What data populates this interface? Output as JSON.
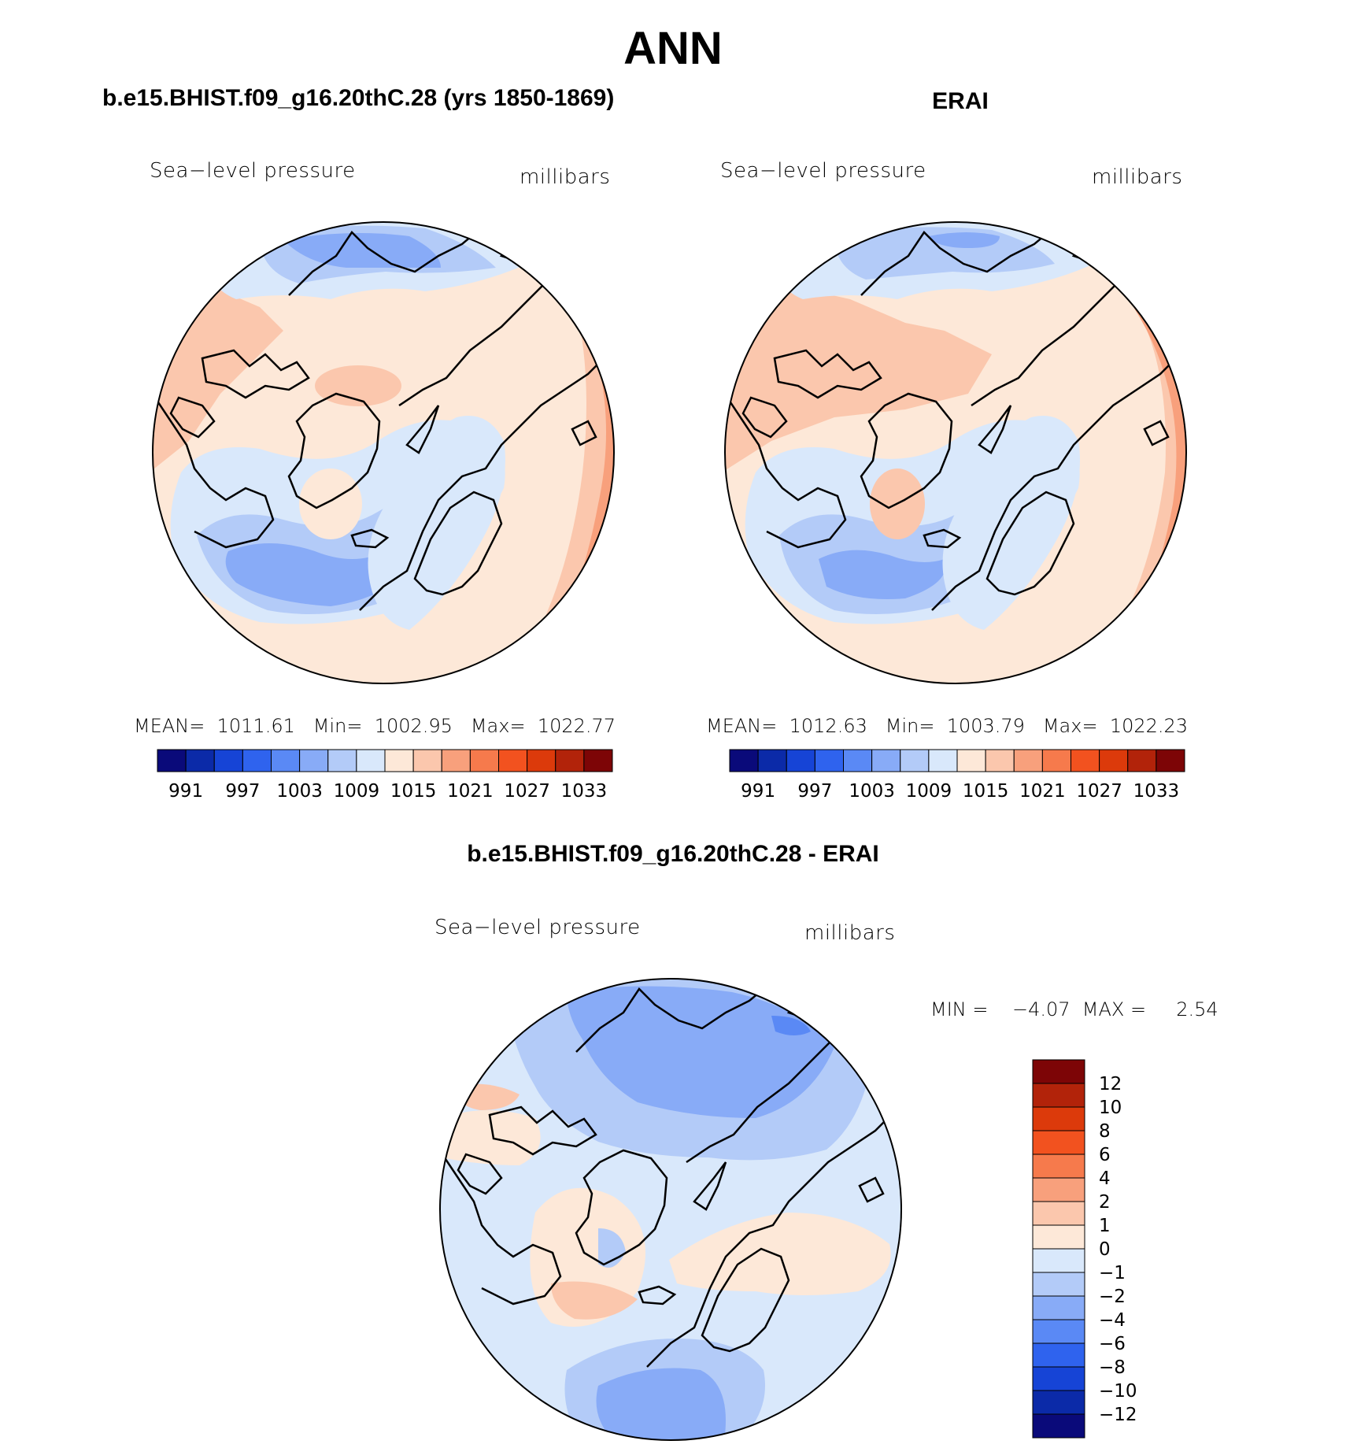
{
  "title": "ANN",
  "left_panel": {
    "title": "b.e15.BHIST.f09_g16.20thC.28 (yrs 1850-1869)",
    "variable": "Sea−level pressure",
    "units": "millibars",
    "stats": "MEAN=  1011.61   Min=  1002.95   Max=  1022.77"
  },
  "right_panel": {
    "title": "ERAI",
    "variable": "Sea−level pressure",
    "units": "millibars",
    "stats": "MEAN=  1012.63   Min=  1003.79   Max=  1022.23"
  },
  "diff_panel": {
    "title": "b.e15.BHIST.f09_g16.20thC.28 - ERAI",
    "variable": "Sea−level pressure",
    "units": "millibars",
    "stats": "MIN =    −4.07  MAX =     2.54"
  },
  "colorbar_abs": {
    "colors": [
      "#0a0a7a",
      "#0b2aa8",
      "#1644d6",
      "#2f63ee",
      "#5a89f5",
      "#88abf7",
      "#b3cbf8",
      "#d9e8fb",
      "#fde8d8",
      "#fbc7ad",
      "#f8a07c",
      "#f67a4c",
      "#f2521f",
      "#dc3a0b",
      "#b2230a",
      "#7d0506"
    ],
    "labels": [
      "991",
      "997",
      "1003",
      "1009",
      "1015",
      "1021",
      "1027",
      "1033"
    ]
  },
  "colorbar_diff": {
    "colors": [
      "#0a0a7a",
      "#0b2aa8",
      "#1644d6",
      "#2f63ee",
      "#5a89f5",
      "#88abf7",
      "#b3cbf8",
      "#d9e8fb",
      "#fde8d8",
      "#fbc7ad",
      "#f8a07c",
      "#f67a4c",
      "#f2521f",
      "#dc3a0b",
      "#b2230a",
      "#7d0506"
    ],
    "labels": [
      "12",
      "10",
      "8",
      "6",
      "4",
      "2",
      "1",
      "0",
      "−1",
      "−2",
      "−4",
      "−6",
      "−8",
      "−10",
      "−12"
    ]
  }
}
